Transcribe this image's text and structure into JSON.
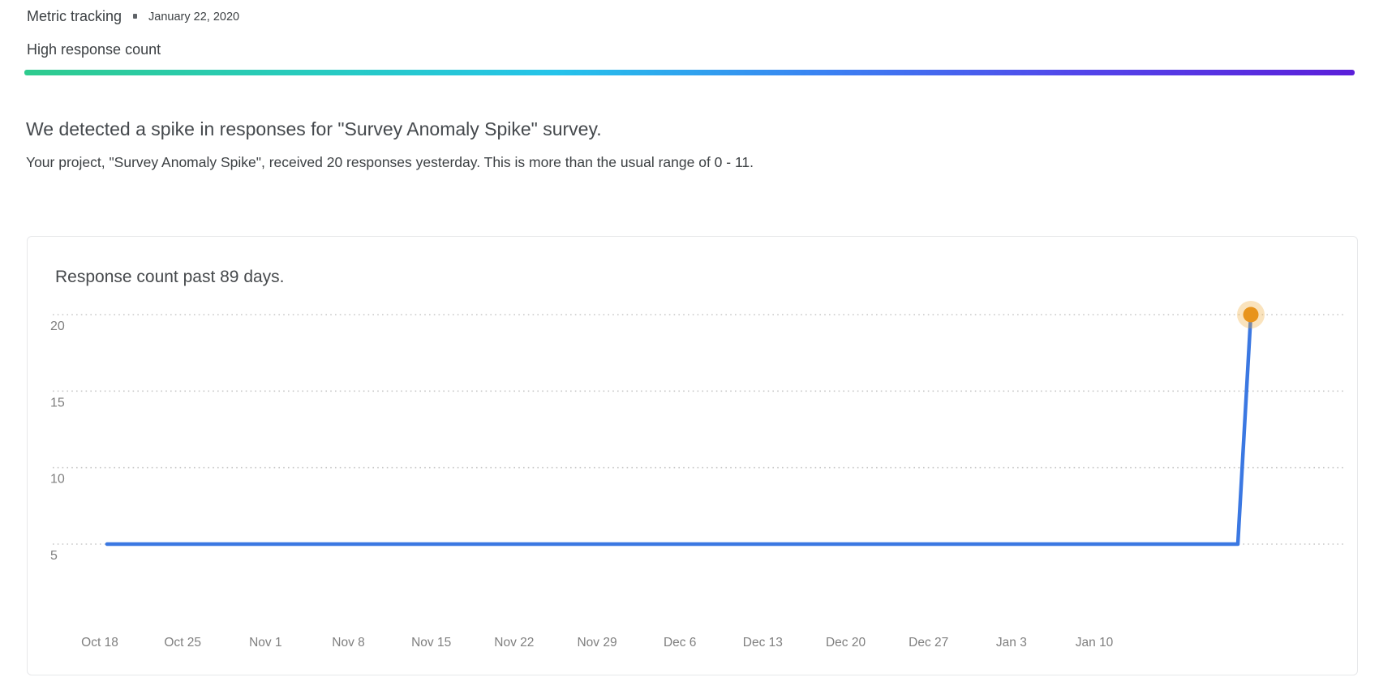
{
  "header": {
    "title": "Metric tracking",
    "date": "January 22, 2020",
    "subtitle": "High response count"
  },
  "divider": {
    "gradient_colors": [
      "#2ecb8e",
      "#27cbc0",
      "#25c3ea",
      "#3a82f2",
      "#5246ea",
      "#5b1fd9"
    ],
    "gradient_stops_pct": [
      0,
      22,
      40,
      60,
      79,
      100
    ]
  },
  "alert": {
    "heading": "We detected a spike in responses for \"Survey Anomaly Spike\" survey.",
    "body": "Your project, \"Survey Anomaly Spike\", received 20 responses yesterday. This is more than the usual range of 0 - 11."
  },
  "chart_card": {
    "title": "Response count past 89 days."
  },
  "chart_data": {
    "type": "line",
    "title": "Response count past 89 days.",
    "xlabel": "",
    "ylabel": "",
    "x_tick_labels": [
      "Oct 18",
      "Oct 25",
      "Nov 1",
      "Nov 8",
      "Nov 15",
      "Nov 22",
      "Nov 29",
      "Dec 6",
      "Dec 13",
      "Dec 20",
      "Dec 27",
      "Jan 3",
      "Jan 10"
    ],
    "y_ticks": [
      5,
      10,
      15,
      20
    ],
    "grid": "dotted-horizontal",
    "legend": "none",
    "num_points": 89,
    "series": [
      {
        "name": "Response count",
        "color": "#3b78e2",
        "values": [
          5,
          5,
          5,
          5,
          5,
          5,
          5,
          5,
          5,
          5,
          5,
          5,
          5,
          5,
          5,
          5,
          5,
          5,
          5,
          5,
          5,
          5,
          5,
          5,
          5,
          5,
          5,
          5,
          5,
          5,
          5,
          5,
          5,
          5,
          5,
          5,
          5,
          5,
          5,
          5,
          5,
          5,
          5,
          5,
          5,
          5,
          5,
          5,
          5,
          5,
          5,
          5,
          5,
          5,
          5,
          5,
          5,
          5,
          5,
          5,
          5,
          5,
          5,
          5,
          5,
          5,
          5,
          5,
          5,
          5,
          5,
          5,
          5,
          5,
          5,
          5,
          5,
          5,
          5,
          5,
          5,
          5,
          5,
          5,
          5,
          5,
          5,
          5,
          20
        ]
      }
    ],
    "highlight_point": {
      "index": 88,
      "value": 20,
      "dot_color": "#e8941c",
      "halo_color": "rgba(238, 167, 50, 0.32)"
    },
    "colors": {
      "gridline": "#c8c8c8",
      "axis_label": "#7f7f7f"
    }
  }
}
